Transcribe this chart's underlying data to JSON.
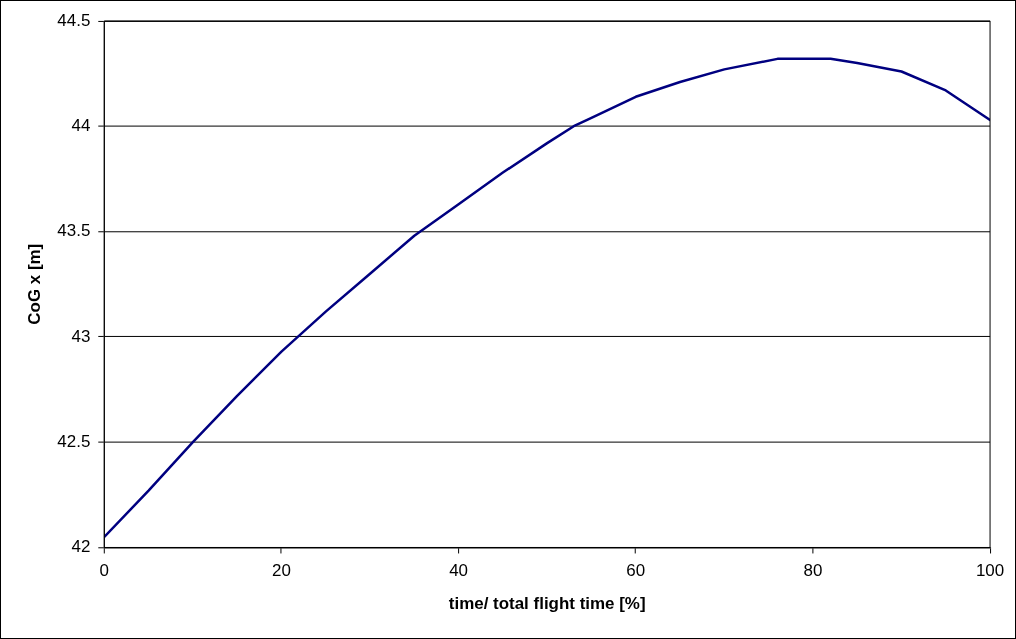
{
  "chart_data": {
    "type": "line",
    "xlabel": "time/ total flight time [%]",
    "ylabel": "CoG x [m]",
    "x": [
      0,
      5,
      10,
      15,
      20,
      25,
      30,
      35,
      40,
      45,
      50,
      53,
      55,
      60,
      65,
      70,
      76,
      82,
      85,
      90,
      95,
      100
    ],
    "series": [
      {
        "color": "#000080",
        "values": [
          42.05,
          42.27,
          42.5,
          42.72,
          42.93,
          43.12,
          43.3,
          43.48,
          43.63,
          43.78,
          43.92,
          44.0,
          44.04,
          44.14,
          44.21,
          44.27,
          44.32,
          44.32,
          44.3,
          44.26,
          44.17,
          44.03
        ]
      }
    ],
    "xlim": [
      0,
      100
    ],
    "xticks": [
      0,
      20,
      40,
      60,
      80,
      100
    ],
    "ylim": [
      42,
      44.5
    ],
    "yticks": [
      42,
      42.5,
      43,
      43.5,
      44,
      44.5
    ],
    "grid": "y",
    "legend": false,
    "marker": "none",
    "line_style": "solid"
  }
}
